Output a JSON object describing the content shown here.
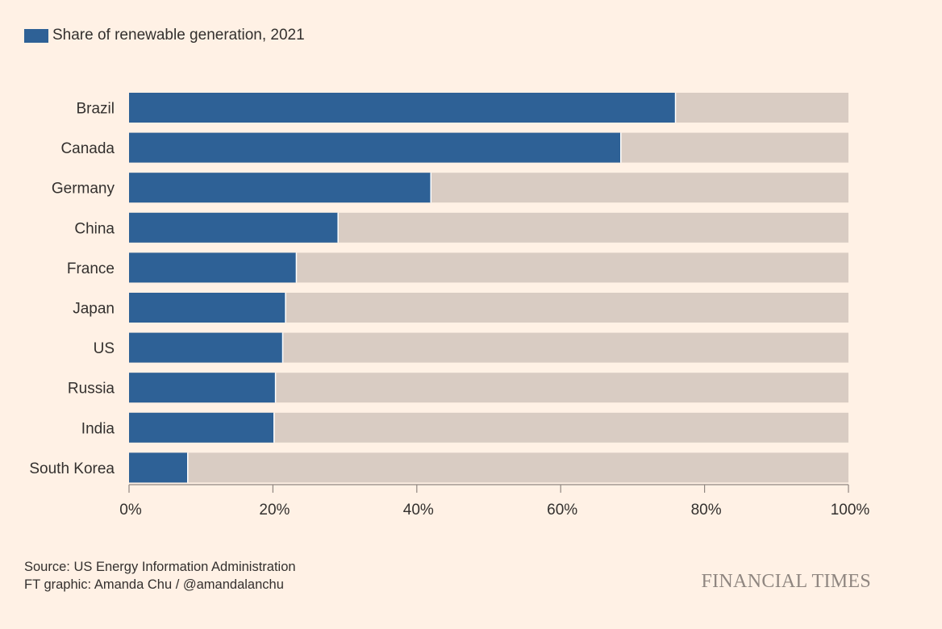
{
  "legend": {
    "label": "Share of renewable generation, 2021"
  },
  "colors": {
    "bar": "#2e6196",
    "remainder": "#d9ccc3",
    "axis": "#8f8680",
    "background": "#fff1e5"
  },
  "chart_data": {
    "type": "bar",
    "orientation": "horizontal",
    "stacked_to_total": true,
    "categories": [
      "Brazil",
      "Canada",
      "Germany",
      "China",
      "France",
      "Japan",
      "US",
      "Russia",
      "India",
      "South Korea"
    ],
    "series": [
      {
        "name": "Share of renewable generation, 2021",
        "values": [
          75.9,
          68.3,
          41.9,
          29.0,
          23.2,
          21.7,
          21.3,
          20.3,
          20.1,
          8.1
        ]
      }
    ],
    "xlim": [
      0,
      100
    ],
    "xticks": [
      0,
      20,
      40,
      60,
      80,
      100
    ],
    "xtick_labels": [
      "0%",
      "20%",
      "40%",
      "60%",
      "80%",
      "100%"
    ],
    "title": "",
    "xlabel": "",
    "ylabel": "",
    "legend_position": "top-left"
  },
  "footer": {
    "source": "Source: US Energy Information Administration",
    "credit": "FT graphic: Amanda Chu / @amandalanchu",
    "brand": "FINANCIAL TIMES"
  }
}
